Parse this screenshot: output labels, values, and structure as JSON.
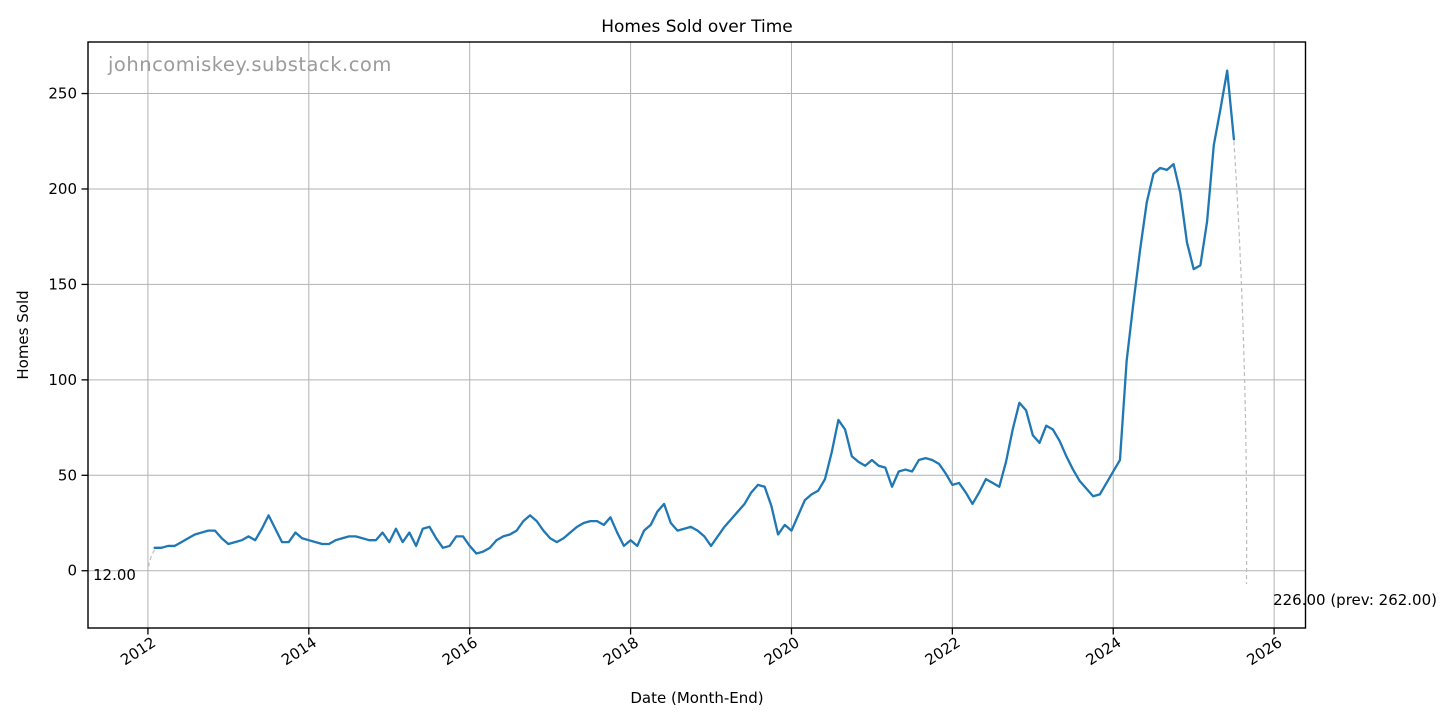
{
  "title": "Homes Sold over Time",
  "watermark": "johncomiskey.substack.com",
  "annotations": {
    "first_point_label": "12.00",
    "last_point_label": "226.00 (prev: 262.00)"
  },
  "colors": {
    "line": "#1f77b4",
    "grid": "#b2b2b2",
    "spine": "#000000",
    "text": "#000000",
    "watermark": "#9b9b9b",
    "annotation_connector": "#bcbcbc"
  },
  "chart_data": {
    "type": "line",
    "title": "Homes Sold over Time",
    "xlabel": "Date (Month-End)",
    "ylabel": "Homes Sold",
    "frequency": "monthly",
    "start": "2012-01",
    "end": "2025-06",
    "x_ticks": [
      2012,
      2014,
      2016,
      2018,
      2020,
      2022,
      2024,
      2026
    ],
    "y_ticks": [
      0,
      50,
      100,
      150,
      200,
      250
    ],
    "xlim": [
      2011.255,
      2026.39
    ],
    "ylim": [
      -30,
      277
    ],
    "grid": true,
    "first_value": 12,
    "last_value": 226,
    "prev_value": 262,
    "values": [
      12,
      12,
      13,
      13,
      15,
      17,
      19,
      20,
      21,
      21,
      17,
      14,
      15,
      16,
      18,
      16,
      22,
      29,
      22,
      15,
      15,
      20,
      17,
      16,
      15,
      14,
      14,
      16,
      17,
      18,
      18,
      17,
      16,
      16,
      20,
      15,
      22,
      15,
      20,
      13,
      22,
      23,
      17,
      12,
      13,
      18,
      18,
      13,
      9,
      10,
      12,
      16,
      18,
      19,
      21,
      26,
      29,
      26,
      21,
      17,
      15,
      17,
      20,
      23,
      25,
      26,
      26,
      24,
      28,
      20,
      13,
      16,
      13,
      21,
      24,
      31,
      35,
      25,
      21,
      22,
      23,
      21,
      18,
      13,
      18,
      23,
      27,
      31,
      35,
      41,
      45,
      44,
      34,
      19,
      24,
      21,
      29,
      37,
      40,
      42,
      48,
      62,
      79,
      74,
      60,
      57,
      55,
      58,
      55,
      54,
      44,
      52,
      53,
      52,
      58,
      59,
      58,
      56,
      51,
      45,
      46,
      41,
      35,
      41,
      48,
      46,
      44,
      57,
      74,
      88,
      84,
      71,
      67,
      76,
      74,
      68,
      60,
      53,
      47,
      43,
      39,
      40,
      46,
      52,
      58,
      110,
      140,
      168,
      193,
      208,
      211,
      210,
      213,
      198,
      172,
      158,
      160,
      183,
      223,
      242,
      262,
      226
    ]
  }
}
